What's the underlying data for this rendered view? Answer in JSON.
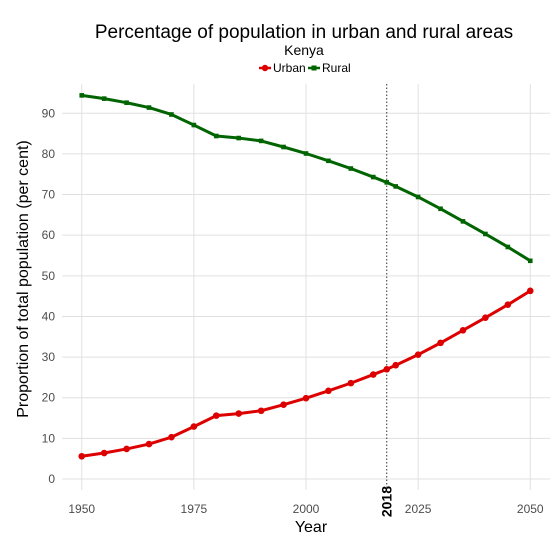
{
  "chart_data": {
    "type": "line",
    "title": "Percentage of population in urban and rural areas",
    "subtitle": "Kenya",
    "xlabel": "Year",
    "ylabel": "Proportion of total population (per cent)",
    "x": [
      1950,
      1955,
      1960,
      1965,
      1970,
      1975,
      1980,
      1985,
      1990,
      1995,
      2000,
      2005,
      2010,
      2015,
      2018,
      2020,
      2025,
      2030,
      2035,
      2040,
      2045,
      2050
    ],
    "x_ticks": [
      "1950",
      "1975",
      "2000",
      "2025",
      "2050"
    ],
    "y_ticks": [
      "0",
      "10",
      "20",
      "30",
      "40",
      "50",
      "60",
      "70",
      "80",
      "90"
    ],
    "xlim": [
      1950,
      2050
    ],
    "ylim": [
      0,
      95
    ],
    "grid": true,
    "legend_position": "top",
    "series": [
      {
        "name": "Urban",
        "color": "#dd0000",
        "marker": "circle",
        "values": [
          5.6,
          6.4,
          7.4,
          8.6,
          10.3,
          12.9,
          15.6,
          16.1,
          16.8,
          18.3,
          19.9,
          21.7,
          23.6,
          25.7,
          27.0,
          28.0,
          30.6,
          33.5,
          36.6,
          39.7,
          42.9,
          46.3
        ]
      },
      {
        "name": "Rural",
        "color": "#006400",
        "marker": "square",
        "values": [
          94.4,
          93.6,
          92.6,
          91.4,
          89.7,
          87.1,
          84.4,
          83.9,
          83.2,
          81.7,
          80.1,
          78.3,
          76.4,
          74.3,
          73.0,
          72.0,
          69.4,
          66.5,
          63.4,
          60.3,
          57.1,
          53.7
        ]
      }
    ],
    "annotation": {
      "label": "2018",
      "x": 2018,
      "style": "dotted-vertical-line"
    }
  }
}
